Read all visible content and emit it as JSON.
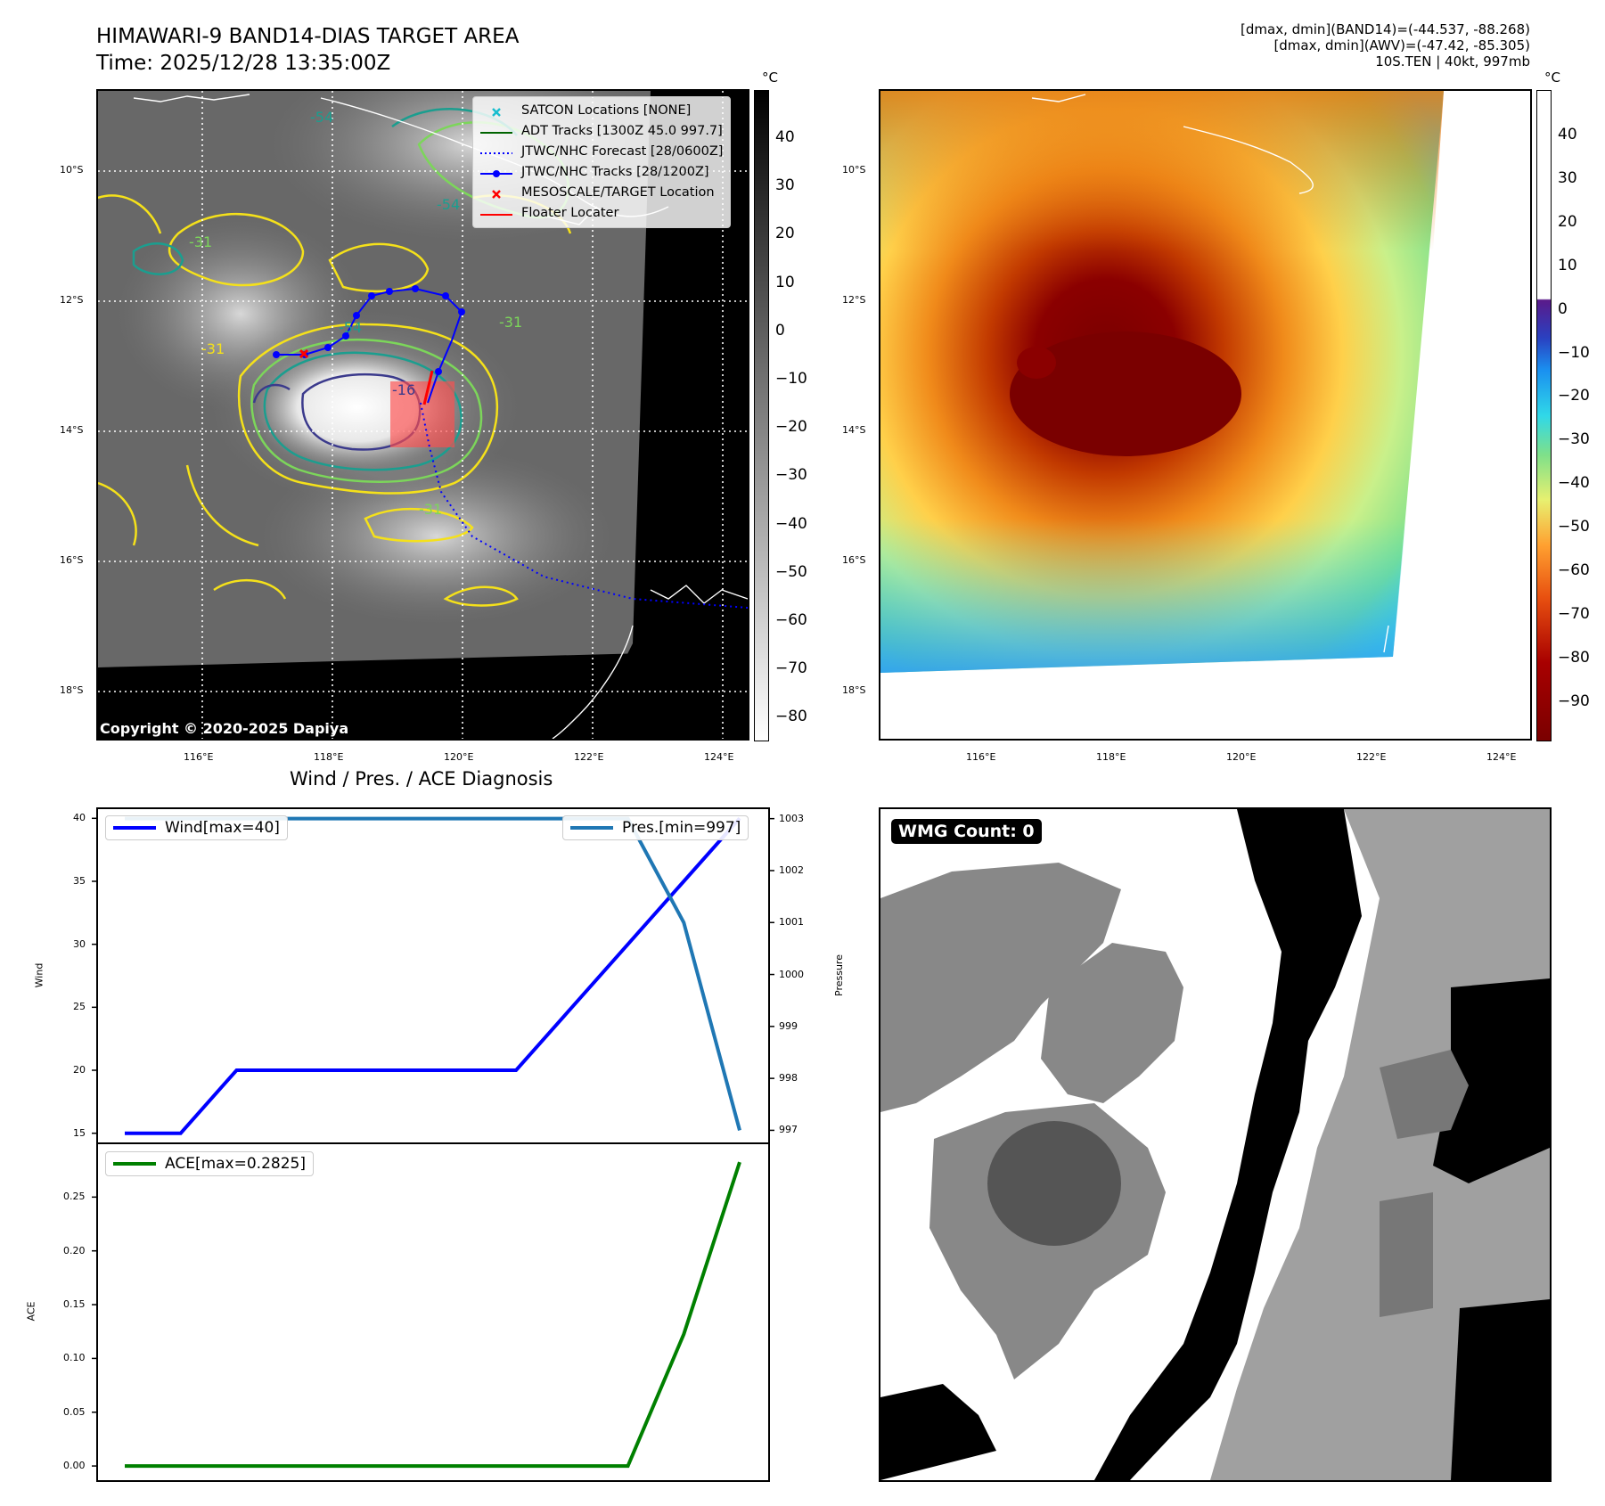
{
  "header": {
    "title_line1": "HIMAWARI-9 BAND14-DIAS TARGET AREA",
    "title_line2": "Time: 2025/12/28 13:35:00Z",
    "info_line1": "[dmax, dmin](BAND14)=(-44.537, -88.268)",
    "info_line2": "[dmax, dmin](AWV)=(-47.42, -85.305)",
    "info_line3": "10S.TEN | 40kt, 997mb"
  },
  "map_axes": {
    "lat_labels": [
      "10°S",
      "12°S",
      "14°S",
      "16°S",
      "18°S"
    ],
    "lon_labels": [
      "116°E",
      "118°E",
      "120°E",
      "122°E",
      "124°E"
    ]
  },
  "left_map": {
    "legend": [
      {
        "label": "SATCON Locations [NONE]",
        "symbol": "x",
        "color": "#17becf"
      },
      {
        "label": "ADT Tracks [1300Z 45.0 997.7]",
        "symbol": "line",
        "color": "#006400"
      },
      {
        "label": "JTWC/NHC Forecast [28/0600Z]",
        "symbol": "dotted",
        "color": "#0000ff"
      },
      {
        "label": "JTWC/NHC Tracks [28/1200Z]",
        "symbol": "line-dot",
        "color": "#0000ff"
      },
      {
        "label": "MESOSCALE/TARGET Location",
        "symbol": "x",
        "color": "#ff0000"
      },
      {
        "label": "Floater Locater",
        "symbol": "line",
        "color": "#ff0000"
      }
    ],
    "contour_labels": [
      "-54",
      "-54",
      "-31",
      "-31",
      "-31",
      "-54",
      "-31",
      "-16"
    ],
    "copyright": "Copyright © 2020-2025 Dapiya"
  },
  "colorbar_left": {
    "unit": "°C",
    "ticks": [
      "40",
      "30",
      "20",
      "10",
      "0",
      "−10",
      "−20",
      "−30",
      "−40",
      "−50",
      "−60",
      "−70",
      "−80"
    ]
  },
  "colorbar_right": {
    "unit": "°C",
    "ticks": [
      "40",
      "30",
      "20",
      "10",
      "0",
      "−10",
      "−20",
      "−30",
      "−40",
      "−50",
      "−60",
      "−70",
      "−80",
      "−90"
    ]
  },
  "chart_data": [
    {
      "type": "line",
      "title": "Wind / Pres. / ACE Diagnosis",
      "ylabel": "Wind",
      "y2label": "Pressure",
      "ylim": [
        14.2,
        40.8
      ],
      "y2lim": [
        996.75,
        1003.2
      ],
      "yticks": [
        "40",
        "35",
        "30",
        "25",
        "20",
        "15"
      ],
      "y2ticks": [
        "1003",
        "1002",
        "1001",
        "1000",
        "999",
        "998",
        "997"
      ],
      "x": [
        0,
        1,
        2,
        3,
        4,
        5,
        6,
        7,
        8,
        9,
        10,
        11
      ],
      "series": [
        {
          "name": "Wind[max=40]",
          "axis": "left",
          "color": "#0000ff",
          "values": [
            15,
            15,
            20,
            20,
            20,
            20,
            20,
            20,
            25,
            30,
            35,
            40
          ]
        },
        {
          "name": "Pres.[min=997]",
          "axis": "right",
          "color": "#1f77b4",
          "values": [
            1003,
            1003,
            1003,
            1003,
            1003,
            1003,
            1003,
            1003,
            1003,
            1003,
            1001,
            997
          ]
        }
      ]
    },
    {
      "type": "line",
      "title": "",
      "ylabel": "ACE",
      "ylim": [
        -0.014,
        0.3
      ],
      "yticks": [
        "0.25",
        "0.20",
        "0.15",
        "0.10",
        "0.05",
        "0.00"
      ],
      "x": [
        0,
        1,
        2,
        3,
        4,
        5,
        6,
        7,
        8,
        9,
        10,
        11
      ],
      "series": [
        {
          "name": "ACE[max=0.2825]",
          "color": "#008000",
          "values": [
            0,
            0,
            0,
            0,
            0,
            0,
            0,
            0,
            0,
            0,
            0.1225,
            0.2825
          ]
        }
      ]
    }
  ],
  "wmg_panel": {
    "label": "WMG Count: 0"
  }
}
